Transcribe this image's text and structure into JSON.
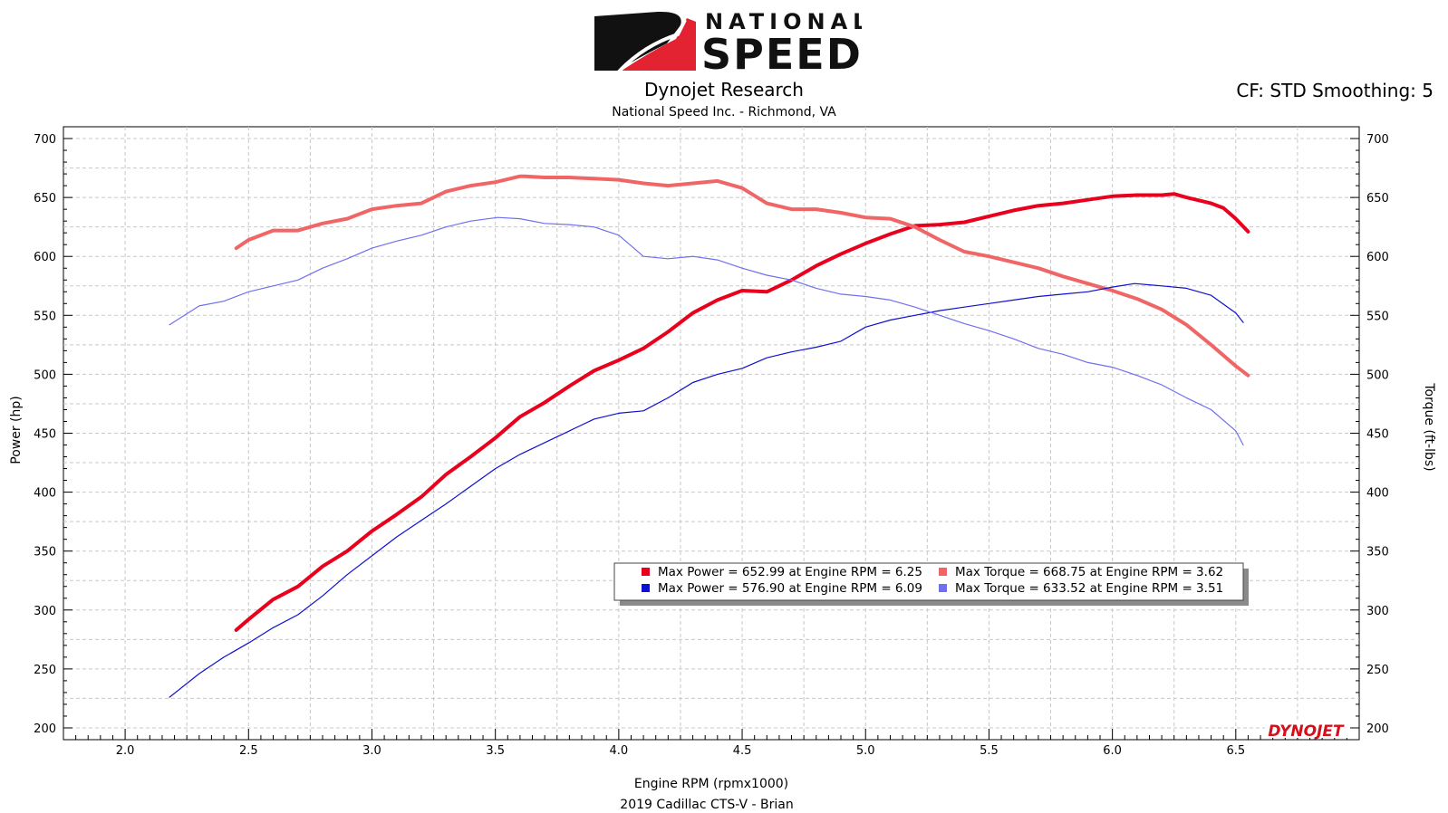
{
  "header": {
    "logo_top": "NATIONAL",
    "logo_bottom": "SPEED",
    "title": "Dynojet Research",
    "subtitle": "National Speed Inc. - Richmond, VA",
    "cf_text": "CF: STD Smoothing: 5"
  },
  "footer": {
    "vehicle": "2019 Cadillac CTS-V - Brian"
  },
  "watermark": "DYNOJET",
  "colors": {
    "power_red": "#e8001c",
    "torque_red": "#f06666",
    "power_blue": "#1010d0",
    "torque_blue": "#6f6ff0",
    "grid": "#c8c8c8"
  },
  "legend": [
    {
      "text": "Max Power = 652.99 at Engine RPM = 6.25",
      "color": "#e8001c"
    },
    {
      "text": "Max Torque = 668.75 at Engine RPM = 3.62",
      "color": "#f06666"
    },
    {
      "text": "Max Power = 576.90 at Engine RPM = 6.09",
      "color": "#1010d0"
    },
    {
      "text": "Max Torque = 633.52 at Engine RPM = 3.51",
      "color": "#6f6ff0"
    }
  ],
  "chart_data": {
    "type": "line",
    "xlabel": "Engine RPM (rpmx1000)",
    "ylabel": "Power (hp)",
    "y2label": "Torque (ft-lbs)",
    "xlim": [
      1.75,
      7.0
    ],
    "ylim": [
      190,
      710
    ],
    "x_ticks": [
      "2.0",
      "2.5",
      "3.0",
      "3.5",
      "4.0",
      "4.5",
      "5.0",
      "5.5",
      "6.0",
      "6.5"
    ],
    "y_ticks": [
      "200",
      "250",
      "300",
      "350",
      "400",
      "450",
      "500",
      "550",
      "600",
      "650",
      "700"
    ],
    "grid": true,
    "series": [
      {
        "axis": "left",
        "color": "#e8001c",
        "width": 4,
        "x": [
          2.45,
          2.5,
          2.6,
          2.7,
          2.8,
          2.9,
          3.0,
          3.1,
          3.2,
          3.3,
          3.4,
          3.5,
          3.6,
          3.7,
          3.8,
          3.9,
          4.0,
          4.1,
          4.2,
          4.3,
          4.4,
          4.5,
          4.6,
          4.7,
          4.8,
          4.9,
          5.0,
          5.1,
          5.2,
          5.3,
          5.4,
          5.5,
          5.6,
          5.7,
          5.8,
          5.9,
          6.0,
          6.1,
          6.2,
          6.25,
          6.3,
          6.4,
          6.45,
          6.5,
          6.55
        ],
        "y": [
          283,
          292,
          309,
          320,
          337,
          350,
          367,
          381,
          396,
          415,
          430,
          446,
          464,
          476,
          490,
          503,
          512,
          522,
          536,
          552,
          563,
          571,
          570,
          580,
          592,
          602,
          611,
          619,
          626,
          627,
          629,
          634,
          639,
          643,
          645,
          648,
          651,
          652,
          652,
          653,
          650,
          645,
          641,
          632,
          621
        ]
      },
      {
        "axis": "right",
        "color": "#f06666",
        "width": 4,
        "x": [
          2.45,
          2.5,
          2.6,
          2.7,
          2.8,
          2.9,
          3.0,
          3.1,
          3.2,
          3.3,
          3.4,
          3.5,
          3.6,
          3.62,
          3.7,
          3.8,
          3.9,
          4.0,
          4.1,
          4.2,
          4.3,
          4.4,
          4.5,
          4.6,
          4.7,
          4.8,
          4.9,
          5.0,
          5.1,
          5.2,
          5.3,
          5.4,
          5.5,
          5.6,
          5.7,
          5.8,
          5.9,
          6.0,
          6.1,
          6.2,
          6.3,
          6.4,
          6.5,
          6.55
        ],
        "y": [
          607,
          614,
          622,
          622,
          628,
          632,
          640,
          643,
          645,
          655,
          660,
          663,
          668,
          668,
          667,
          667,
          666,
          665,
          662,
          660,
          662,
          664,
          658,
          645,
          640,
          640,
          637,
          633,
          632,
          625,
          614,
          604,
          600,
          595,
          590,
          583,
          577,
          571,
          564,
          555,
          542,
          525,
          507,
          499
        ]
      },
      {
        "axis": "left",
        "color": "#1010d0",
        "width": 1.2,
        "x": [
          2.18,
          2.3,
          2.4,
          2.5,
          2.6,
          2.7,
          2.8,
          2.9,
          3.0,
          3.1,
          3.2,
          3.3,
          3.4,
          3.5,
          3.6,
          3.7,
          3.8,
          3.9,
          4.0,
          4.1,
          4.2,
          4.3,
          4.4,
          4.5,
          4.6,
          4.7,
          4.8,
          4.9,
          5.0,
          5.1,
          5.2,
          5.3,
          5.4,
          5.5,
          5.6,
          5.7,
          5.8,
          5.9,
          6.0,
          6.09,
          6.2,
          6.3,
          6.4,
          6.5,
          6.53
        ],
        "y": [
          226,
          246,
          260,
          272,
          285,
          296,
          312,
          330,
          346,
          362,
          376,
          390,
          405,
          420,
          432,
          442,
          452,
          462,
          467,
          469,
          480,
          493,
          500,
          505,
          514,
          519,
          523,
          528,
          540,
          546,
          550,
          554,
          557,
          560,
          563,
          566,
          568,
          570,
          574,
          577,
          575,
          573,
          567,
          552,
          544
        ]
      },
      {
        "axis": "right",
        "color": "#6f6ff0",
        "width": 1.2,
        "x": [
          2.18,
          2.3,
          2.4,
          2.5,
          2.6,
          2.7,
          2.8,
          2.9,
          3.0,
          3.1,
          3.2,
          3.3,
          3.4,
          3.51,
          3.6,
          3.7,
          3.8,
          3.9,
          4.0,
          4.1,
          4.2,
          4.3,
          4.4,
          4.5,
          4.6,
          4.7,
          4.8,
          4.9,
          5.0,
          5.1,
          5.2,
          5.3,
          5.4,
          5.5,
          5.6,
          5.7,
          5.8,
          5.9,
          6.0,
          6.1,
          6.2,
          6.3,
          6.4,
          6.5,
          6.53
        ],
        "y": [
          542,
          558,
          562,
          570,
          575,
          580,
          590,
          598,
          607,
          613,
          618,
          625,
          630,
          633,
          632,
          628,
          627,
          625,
          618,
          600,
          598,
          600,
          597,
          590,
          584,
          580,
          573,
          568,
          566,
          563,
          557,
          550,
          543,
          537,
          530,
          522,
          517,
          510,
          506,
          499,
          491,
          480,
          470,
          452,
          440
        ]
      }
    ]
  }
}
